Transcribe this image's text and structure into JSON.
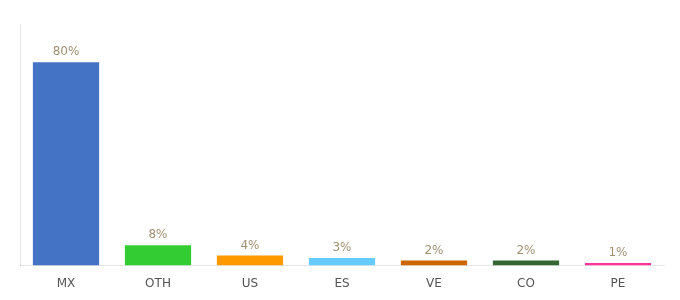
{
  "chart_data": {
    "type": "bar",
    "categories": [
      "MX",
      "OTH",
      "US",
      "ES",
      "VE",
      "CO",
      "PE"
    ],
    "values": [
      80,
      8,
      4,
      3,
      2,
      2,
      1
    ],
    "value_labels": [
      "80%",
      "8%",
      "4%",
      "3%",
      "2%",
      "2%",
      "1%"
    ],
    "colors": [
      "#4472C4",
      "#33CC33",
      "#FF9900",
      "#66CCFF",
      "#CC6600",
      "#336633",
      "#FF3399"
    ],
    "ylim": [
      0,
      95
    ],
    "grid": false,
    "data_labels": true,
    "tick_labels": "x"
  }
}
